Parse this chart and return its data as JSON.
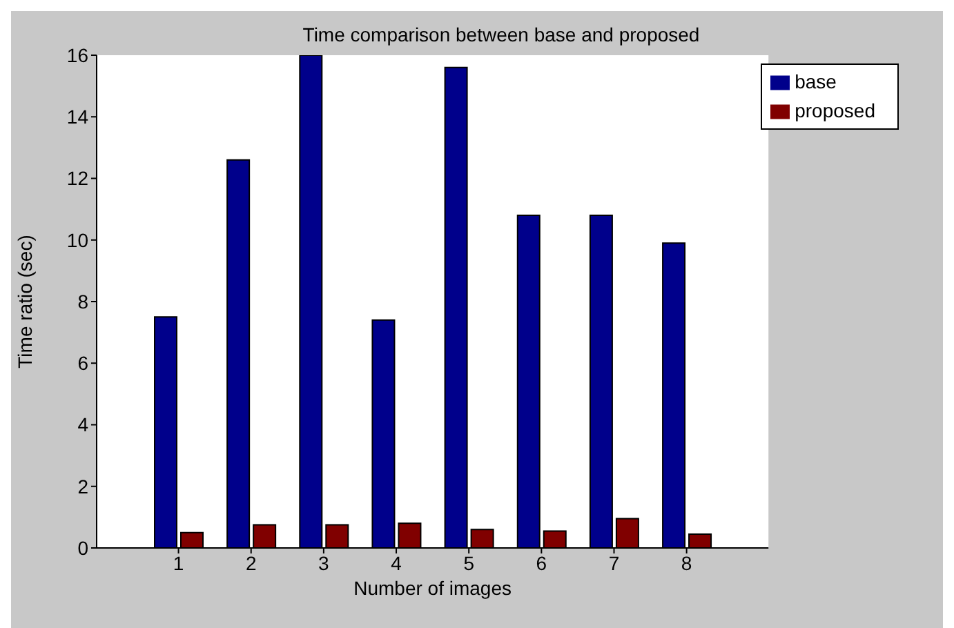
{
  "chart_data": {
    "type": "bar",
    "title": "Time comparison between base and proposed",
    "xlabel": "Number of images",
    "ylabel": "Time ratio (sec)",
    "categories": [
      "1",
      "2",
      "3",
      "4",
      "5",
      "6",
      "7",
      "8"
    ],
    "series": [
      {
        "name": "base",
        "color": "#00008b",
        "values": [
          7.5,
          12.6,
          16,
          7.4,
          15.6,
          10.8,
          10.8,
          9.9
        ]
      },
      {
        "name": "proposed",
        "color": "#800000",
        "values": [
          0.5,
          0.75,
          0.75,
          0.8,
          0.6,
          0.55,
          0.95,
          0.45
        ]
      }
    ],
    "ylim": [
      0,
      16
    ],
    "yticks": [
      0,
      2,
      4,
      6,
      8,
      10,
      12,
      14,
      16
    ],
    "grid": false,
    "legend": "top right"
  }
}
